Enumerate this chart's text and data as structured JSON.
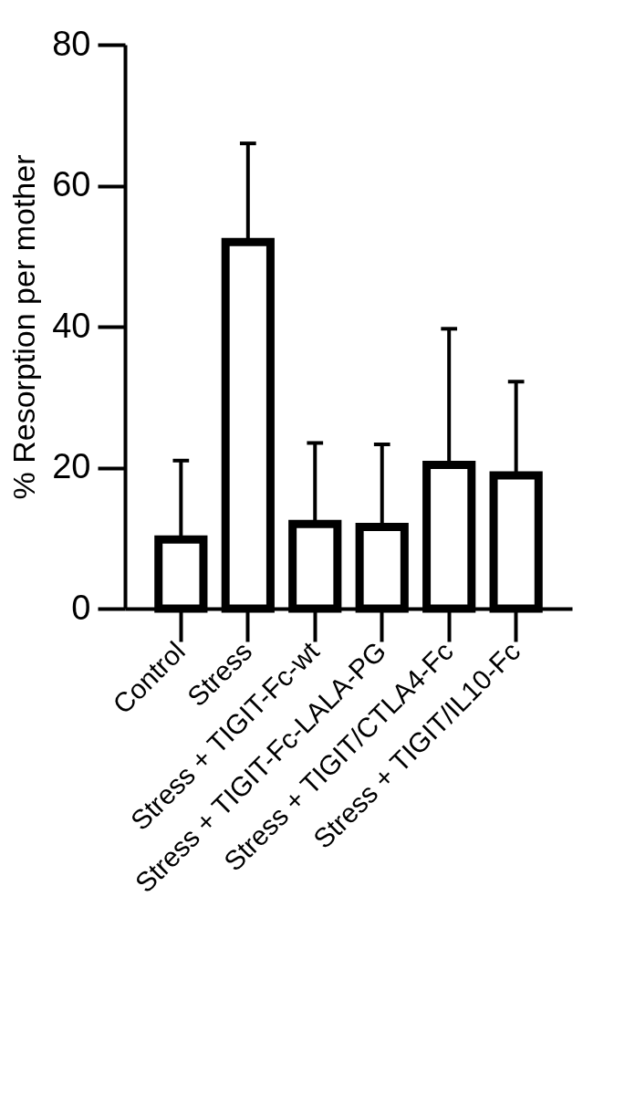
{
  "chart_data": {
    "type": "bar",
    "ylabel": "% Resorption per mother",
    "categories": [
      "Control",
      "Stress",
      "Stress + TIGIT-Fc-wt",
      "Stress + TIGIT-Fc-LALA-PG",
      "Stress + TIGIT/CTLA4-Fc",
      "Stress + TIGIT/IL10-Fc"
    ],
    "values": [
      9.8,
      52,
      12,
      11.6,
      20.4,
      18.9
    ],
    "errors": [
      [
        9.8,
        21
      ],
      [
        52,
        66
      ],
      [
        12,
        23.5
      ],
      [
        11.6,
        23.3
      ],
      [
        20.4,
        39.7
      ],
      [
        18.9,
        32.2
      ]
    ],
    "color": "#000000",
    "ylim": [
      0,
      80
    ],
    "yticks": [
      0,
      20,
      40,
      60,
      80
    ]
  }
}
